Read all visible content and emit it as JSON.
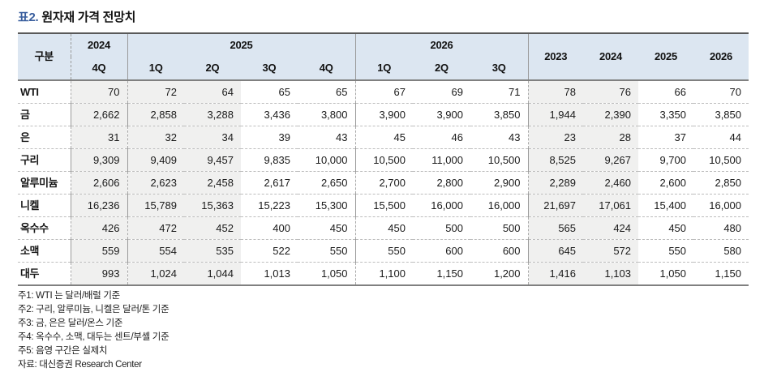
{
  "title": {
    "prefix": "표2.",
    "text": "원자재 가격 전망치"
  },
  "table": {
    "corner_label": "구분",
    "col_groups": [
      {
        "label": "2024",
        "quarters": [
          "4Q"
        ]
      },
      {
        "label": "2025",
        "quarters": [
          "1Q",
          "2Q",
          "3Q",
          "4Q"
        ]
      },
      {
        "label": "2026",
        "quarters": [
          "1Q",
          "2Q",
          "3Q"
        ]
      }
    ],
    "annual_headers": [
      "2023",
      "2024",
      "2025",
      "2026"
    ],
    "rows": [
      {
        "label": "WTI",
        "values": [
          "70",
          "72",
          "64",
          "65",
          "65",
          "67",
          "69",
          "71",
          "78",
          "76",
          "66",
          "70"
        ]
      },
      {
        "label": "금",
        "values": [
          "2,662",
          "2,858",
          "3,288",
          "3,436",
          "3,800",
          "3,900",
          "3,900",
          "3,850",
          "1,944",
          "2,390",
          "3,350",
          "3,850"
        ]
      },
      {
        "label": "은",
        "values": [
          "31",
          "32",
          "34",
          "39",
          "43",
          "45",
          "46",
          "43",
          "23",
          "28",
          "37",
          "44"
        ]
      },
      {
        "label": "구리",
        "values": [
          "9,309",
          "9,409",
          "9,457",
          "9,835",
          "10,000",
          "10,500",
          "11,000",
          "10,500",
          "8,525",
          "9,267",
          "9,700",
          "10,500"
        ]
      },
      {
        "label": "알루미늄",
        "values": [
          "2,606",
          "2,623",
          "2,458",
          "2,617",
          "2,650",
          "2,700",
          "2,800",
          "2,900",
          "2,289",
          "2,460",
          "2,600",
          "2,850"
        ]
      },
      {
        "label": "니켈",
        "values": [
          "16,236",
          "15,789",
          "15,363",
          "15,223",
          "15,300",
          "15,500",
          "16,000",
          "16,000",
          "21,697",
          "17,061",
          "15,400",
          "16,000"
        ]
      },
      {
        "label": "옥수수",
        "values": [
          "426",
          "472",
          "452",
          "400",
          "450",
          "450",
          "500",
          "500",
          "565",
          "424",
          "450",
          "480"
        ]
      },
      {
        "label": "소맥",
        "values": [
          "559",
          "554",
          "535",
          "522",
          "550",
          "550",
          "600",
          "600",
          "645",
          "572",
          "550",
          "580"
        ]
      },
      {
        "label": "대두",
        "values": [
          "993",
          "1,024",
          "1,044",
          "1,013",
          "1,050",
          "1,100",
          "1,150",
          "1,200",
          "1,416",
          "1,103",
          "1,050",
          "1,150"
        ]
      }
    ],
    "shaded_value_indices": [
      0,
      1,
      2,
      8,
      9
    ],
    "group_start_value_indices": [
      0,
      1,
      5,
      8
    ],
    "shading_meaning": "음영 구간은 실제치"
  },
  "notes": [
    "주1: WTI 는 달러/배럴 기준",
    "주2: 구리, 알루미늄, 니켈은 달러/톤 기준",
    "주3: 금, 은은 달러/온스 기준",
    "주4: 옥수수, 소맥, 대두는 센트/부셸 기준",
    "주5: 음영 구간은 실제치"
  ],
  "source": "자료: 대신증권 Research Center",
  "colors": {
    "header_bg": "#dce6f1",
    "shaded_bg": "#f0f0ef",
    "title_accent": "#3a5f9e"
  }
}
